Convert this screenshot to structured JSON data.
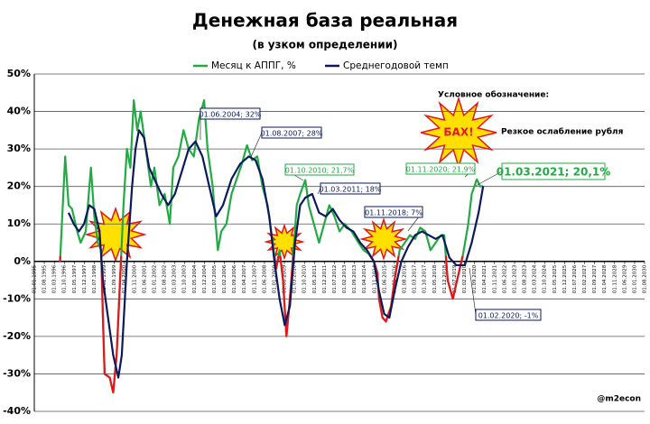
{
  "chart_data": {
    "type": "line",
    "title": "Денежная база реальная",
    "subtitle": "(в узком определении)",
    "ylim": [
      -40,
      50
    ],
    "yticks": [
      {
        "value": -40,
        "label": "-40%"
      },
      {
        "value": -30,
        "label": "-30%"
      },
      {
        "value": -20,
        "label": "-20%"
      },
      {
        "value": -10,
        "label": "-10%"
      },
      {
        "value": 0,
        "label": "0%"
      },
      {
        "value": 10,
        "label": "10%"
      },
      {
        "value": 20,
        "label": "20%"
      },
      {
        "value": 30,
        "label": "30%"
      },
      {
        "value": 40,
        "label": "40%"
      },
      {
        "value": 50,
        "label": "50%"
      }
    ],
    "xlim": [
      1995,
      2030.58
    ],
    "xticks": [
      {
        "value": 1995.0,
        "label": "01.01.1995"
      },
      {
        "value": 1995.58,
        "label": "01.08.1995"
      },
      {
        "value": 1996.17,
        "label": "01.03.1996"
      },
      {
        "value": 1996.75,
        "label": "01.10.1996"
      },
      {
        "value": 1997.33,
        "label": "01.05.1997"
      },
      {
        "value": 1997.92,
        "label": "01.12.1997"
      },
      {
        "value": 1998.5,
        "label": "01.07.1998"
      },
      {
        "value": 1999.08,
        "label": "01.02.1999"
      },
      {
        "value": 1999.67,
        "label": "01.09.1999"
      },
      {
        "value": 2000.25,
        "label": "01.04.2000"
      },
      {
        "value": 2000.83,
        "label": "01.11.2000"
      },
      {
        "value": 2001.42,
        "label": "01.06.2001"
      },
      {
        "value": 2002.0,
        "label": "01.01.2002"
      },
      {
        "value": 2002.58,
        "label": "01.08.2002"
      },
      {
        "value": 2003.17,
        "label": "01.03.2003"
      },
      {
        "value": 2003.75,
        "label": "01.10.2003"
      },
      {
        "value": 2004.33,
        "label": "01.05.2004"
      },
      {
        "value": 2004.92,
        "label": "01.12.2004"
      },
      {
        "value": 2005.5,
        "label": "01.07.2005"
      },
      {
        "value": 2006.08,
        "label": "01.02.2006"
      },
      {
        "value": 2006.67,
        "label": "01.09.2006"
      },
      {
        "value": 2007.25,
        "label": "01.04.2007"
      },
      {
        "value": 2007.83,
        "label": "01.11.2007"
      },
      {
        "value": 2008.42,
        "label": "01.06.2008"
      },
      {
        "value": 2009.0,
        "label": "01.01.2009"
      },
      {
        "value": 2009.58,
        "label": "01.08.2009"
      },
      {
        "value": 2010.17,
        "label": "01.03.2010"
      },
      {
        "value": 2010.75,
        "label": "01.10.2010"
      },
      {
        "value": 2011.33,
        "label": "01.05.2011"
      },
      {
        "value": 2011.92,
        "label": "01.12.2011"
      },
      {
        "value": 2012.5,
        "label": "01.07.2012"
      },
      {
        "value": 2013.08,
        "label": "01.02.2013"
      },
      {
        "value": 2013.67,
        "label": "01.09.2013"
      },
      {
        "value": 2014.25,
        "label": "01.04.2014"
      },
      {
        "value": 2014.83,
        "label": "01.11.2014"
      },
      {
        "value": 2015.42,
        "label": "01.06.2015"
      },
      {
        "value": 2016.0,
        "label": "01.01.2016"
      },
      {
        "value": 2016.58,
        "label": "01.08.2016"
      },
      {
        "value": 2017.17,
        "label": "01.03.2017"
      },
      {
        "value": 2017.75,
        "label": "01.10.2017"
      },
      {
        "value": 2018.33,
        "label": "01.05.2018"
      },
      {
        "value": 2018.92,
        "label": "01.12.2018"
      },
      {
        "value": 2019.5,
        "label": "01.07.2019"
      },
      {
        "value": 2020.08,
        "label": "01.02.2020"
      },
      {
        "value": 2020.67,
        "label": "01.09.2020"
      },
      {
        "value": 2021.25,
        "label": "01.04.2021"
      },
      {
        "value": 2021.83,
        "label": "01.11.2021"
      },
      {
        "value": 2022.42,
        "label": "01.06.2022"
      },
      {
        "value": 2023.0,
        "label": "01.01.2023"
      },
      {
        "value": 2023.58,
        "label": "01.08.2023"
      },
      {
        "value": 2024.17,
        "label": "01.03.2024"
      },
      {
        "value": 2024.75,
        "label": "01.10.2024"
      },
      {
        "value": 2025.33,
        "label": "01.05.2025"
      },
      {
        "value": 2025.92,
        "label": "01.12.2025"
      },
      {
        "value": 2026.5,
        "label": "01.07.2026"
      },
      {
        "value": 2027.08,
        "label": "01.02.2027"
      },
      {
        "value": 2027.67,
        "label": "01.09.2027"
      },
      {
        "value": 2028.25,
        "label": "01.04.2028"
      },
      {
        "value": 2028.83,
        "label": "01.11.2028"
      },
      {
        "value": 2029.42,
        "label": "01.06.2029"
      },
      {
        "value": 2030.0,
        "label": "01.01.2030"
      },
      {
        "value": 2030.58,
        "label": "01.08.2030"
      }
    ],
    "grid": true,
    "negative_color": "#e8141c",
    "series": [
      {
        "name": "Месяц к АППГ, %",
        "color": "#22aa44",
        "x": [
          1996.5,
          1996.8,
          1997.0,
          1997.2,
          1997.5,
          1997.7,
          1998.0,
          1998.3,
          1998.5,
          1998.7,
          1998.9,
          1999.0,
          1999.1,
          1999.4,
          1999.6,
          1999.8,
          2000.0,
          2000.2,
          2000.4,
          2000.6,
          2000.8,
          2001.0,
          2001.2,
          2001.5,
          2001.8,
          2002.0,
          2002.3,
          2002.6,
          2002.9,
          2003.1,
          2003.4,
          2003.7,
          2004.0,
          2004.3,
          2004.6,
          2004.9,
          2005.1,
          2005.4,
          2005.7,
          2005.9,
          2006.2,
          2006.5,
          2006.8,
          2007.1,
          2007.4,
          2007.7,
          2008.0,
          2008.3,
          2008.6,
          2008.9,
          2009.1,
          2009.3,
          2009.5,
          2009.7,
          2009.9,
          2010.1,
          2010.3,
          2010.5,
          2010.8,
          2011.0,
          2011.3,
          2011.6,
          2011.9,
          2012.2,
          2012.5,
          2012.8,
          2013.1,
          2013.5,
          2013.9,
          2014.2,
          2014.5,
          2014.8,
          2015.0,
          2015.1,
          2015.3,
          2015.5,
          2015.8,
          2016.0,
          2016.3,
          2016.6,
          2016.9,
          2017.2,
          2017.5,
          2017.8,
          2018.1,
          2018.4,
          2018.7,
          2018.9,
          2019.1,
          2019.4,
          2019.7,
          2020.0,
          2020.3,
          2020.5,
          2020.8,
          2021.0,
          2021.17
        ],
        "values": [
          0,
          28,
          15,
          14,
          8,
          5,
          8,
          25,
          12,
          5,
          3,
          -15,
          -30,
          -31,
          -35,
          -25,
          -5,
          15,
          30,
          25,
          43,
          35,
          40,
          30,
          20,
          25,
          15,
          18,
          10,
          25,
          28,
          35,
          30,
          28,
          38,
          43,
          30,
          20,
          3,
          8,
          10,
          18,
          22,
          26,
          31,
          27,
          28,
          20,
          15,
          5,
          -2,
          3,
          -5,
          -20,
          -10,
          2,
          15,
          18,
          21.7,
          15,
          10,
          5,
          10,
          15,
          12,
          8,
          10,
          8,
          5,
          3,
          2,
          0,
          -3,
          -10,
          -15,
          -16,
          -12,
          -5,
          3,
          5,
          7,
          6,
          9,
          8,
          3,
          5,
          7,
          7,
          -5,
          -10,
          -4,
          2,
          10,
          18,
          21.9,
          20,
          20.1
        ]
      },
      {
        "name": "Среднегодовой темп",
        "color": "#0a1a5c",
        "x": [
          1997.0,
          1997.3,
          1997.6,
          1997.9,
          1998.2,
          1998.5,
          1998.8,
          1999.0,
          1999.3,
          1999.6,
          1999.9,
          2000.1,
          2000.4,
          2000.7,
          2000.9,
          2001.1,
          2001.4,
          2001.7,
          2002.0,
          2002.4,
          2002.8,
          2003.2,
          2003.6,
          2004.0,
          2004.4,
          2004.8,
          2005.2,
          2005.6,
          2006.0,
          2006.5,
          2007.0,
          2007.5,
          2007.9,
          2008.3,
          2008.7,
          2009.0,
          2009.3,
          2009.6,
          2009.9,
          2010.2,
          2010.5,
          2010.8,
          2011.2,
          2011.6,
          2012.0,
          2012.4,
          2012.8,
          2013.2,
          2013.6,
          2014.0,
          2014.4,
          2014.8,
          2015.1,
          2015.4,
          2015.7,
          2016.0,
          2016.4,
          2016.8,
          2017.2,
          2017.6,
          2018.0,
          2018.4,
          2018.8,
          2019.2,
          2019.6,
          2020.1,
          2020.5,
          2020.9,
          2021.17
        ],
        "values": [
          13,
          10,
          8,
          10,
          15,
          14,
          8,
          -5,
          -15,
          -25,
          -31,
          -25,
          0,
          20,
          30,
          35,
          33,
          25,
          22,
          18,
          15,
          18,
          24,
          30,
          32,
          28,
          20,
          12,
          15,
          22,
          26,
          28,
          27,
          22,
          12,
          0,
          -10,
          -17,
          -12,
          5,
          15,
          17,
          18,
          13,
          12,
          14,
          11,
          9,
          8,
          5,
          3,
          0,
          -8,
          -14,
          -15,
          -8,
          0,
          4,
          7,
          8,
          7,
          6,
          7,
          1,
          -1,
          -1,
          5,
          13,
          20.1
        ]
      }
    ],
    "annotations": [
      {
        "text": "01.06.2004; 32%",
        "color": "#0a1a5c"
      },
      {
        "text": "01.08.2007; 28%",
        "color": "#0a1a5c"
      },
      {
        "text": "01.10.2010; 21,7%",
        "color": "#22aa44"
      },
      {
        "text": "01.03.2011; 18%",
        "color": "#0a1a5c"
      },
      {
        "text": "01.11.2018; 7%",
        "color": "#0a1a5c"
      },
      {
        "text": "01.11.2020; 21,9%",
        "color": "#22aa44"
      },
      {
        "text": "01.03.2021; 20,1%",
        "color": "#22aa44"
      },
      {
        "text": "01.02.2020; -1%",
        "color": "#0a1a5c"
      }
    ],
    "legend_title": "Условное обозначение:",
    "event_label": "БАХ!",
    "event_text": "Резкое ослабление рубля",
    "credit": "@m2econ"
  }
}
